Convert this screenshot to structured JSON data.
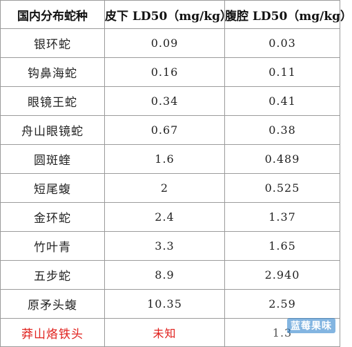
{
  "table": {
    "headers": [
      "国内分布蛇种",
      "皮下 LD50（mg/kg）",
      "腹腔 LD50（mg/kg）"
    ],
    "rows": [
      {
        "name": "银环蛇",
        "sub": "0.09",
        "ip": "0.03"
      },
      {
        "name": "钩鼻海蛇",
        "sub": "0.16",
        "ip": "0.11"
      },
      {
        "name": "眼镜王蛇",
        "sub": "0.34",
        "ip": "0.41"
      },
      {
        "name": "舟山眼镜蛇",
        "sub": "0.67",
        "ip": "0.38"
      },
      {
        "name": "圆斑蝰",
        "sub": "1.6",
        "ip": "0.489"
      },
      {
        "name": "短尾蝮",
        "sub": "2",
        "ip": "0.525"
      },
      {
        "name": "金环蛇",
        "sub": "2.4",
        "ip": "1.37"
      },
      {
        "name": "竹叶青",
        "sub": "3.3",
        "ip": "1.65"
      },
      {
        "name": "五步蛇",
        "sub": "8.9",
        "ip": "2.940"
      },
      {
        "name": "原矛头蝮",
        "sub": "10.35",
        "ip": "2.59"
      }
    ],
    "partial_row": {
      "name": "莽山烙铁头",
      "sub": "未知",
      "ip": "1.3"
    }
  },
  "watermark": "蓝莓果味",
  "colors": {
    "border": "#9a9a9a",
    "text": "#222222",
    "highlight_red": "#e0201c"
  }
}
